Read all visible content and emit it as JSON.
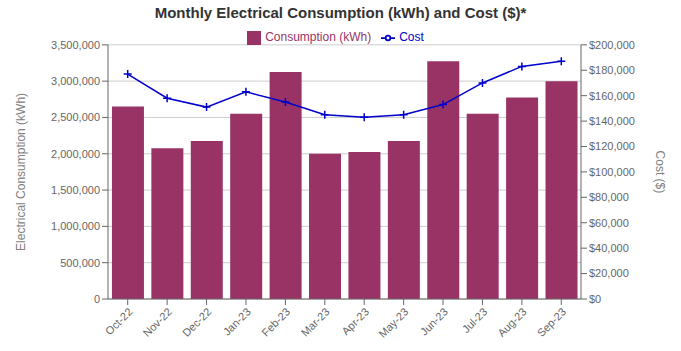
{
  "chart_data": {
    "type": "bar",
    "title": "Monthly Electrical Consumption (kWh) and Cost ($)*",
    "categories": [
      "Oct-22",
      "Nov-22",
      "Dec-22",
      "Jan-23",
      "Feb-23",
      "Mar-23",
      "Apr-23",
      "May-23",
      "Jun-23",
      "Jul-23",
      "Aug-23",
      "Sep-23"
    ],
    "series": [
      {
        "name": "Consumption (kWh)",
        "type": "bar",
        "color": "#993366",
        "values": [
          2650000,
          2075000,
          2175000,
          2550000,
          3125000,
          2000000,
          2025000,
          2175000,
          3275000,
          2550000,
          2775000,
          3000000
        ]
      },
      {
        "name": "Cost",
        "type": "line",
        "color": "#0000CC",
        "marker": "plus",
        "axis": "y2",
        "values": [
          177000,
          158000,
          151000,
          163000,
          155000,
          145000,
          143000,
          145000,
          153000,
          170000,
          183000,
          187000
        ]
      }
    ],
    "ylabel": "Electrical Consumption (kWh)",
    "y2label": "Cost ($)",
    "ylim": [
      0,
      3500000
    ],
    "yticks": [
      0,
      {
        "value": 500000,
        "label": "500,000"
      },
      {
        "value": 1000000,
        "label": "1,000,000"
      },
      {
        "value": 1500000,
        "label": "1,500,000"
      },
      {
        "value": 2000000,
        "label": "2,000,000"
      },
      {
        "value": 2500000,
        "label": "2,500,000"
      },
      {
        "value": 3000000,
        "label": "3,000,000"
      },
      {
        "value": 3500000,
        "label": "3,500,000"
      }
    ],
    "y2lim": [
      0,
      200000
    ],
    "y2ticks": [
      {
        "value": 0,
        "label": "$0"
      },
      {
        "value": 20000,
        "label": "$20,000"
      },
      {
        "value": 40000,
        "label": "$40,000"
      },
      {
        "value": 60000,
        "label": "$60,000"
      },
      {
        "value": 80000,
        "label": "$80,000"
      },
      {
        "value": 100000,
        "label": "$100,000"
      },
      {
        "value": 120000,
        "label": "$120,000"
      },
      {
        "value": 140000,
        "label": "$140,000"
      },
      {
        "value": 160000,
        "label": "$160,000"
      },
      {
        "value": 180000,
        "label": "$180,000"
      },
      {
        "value": 200000,
        "label": "$200,000"
      }
    ],
    "grid": true,
    "legend": "top"
  }
}
